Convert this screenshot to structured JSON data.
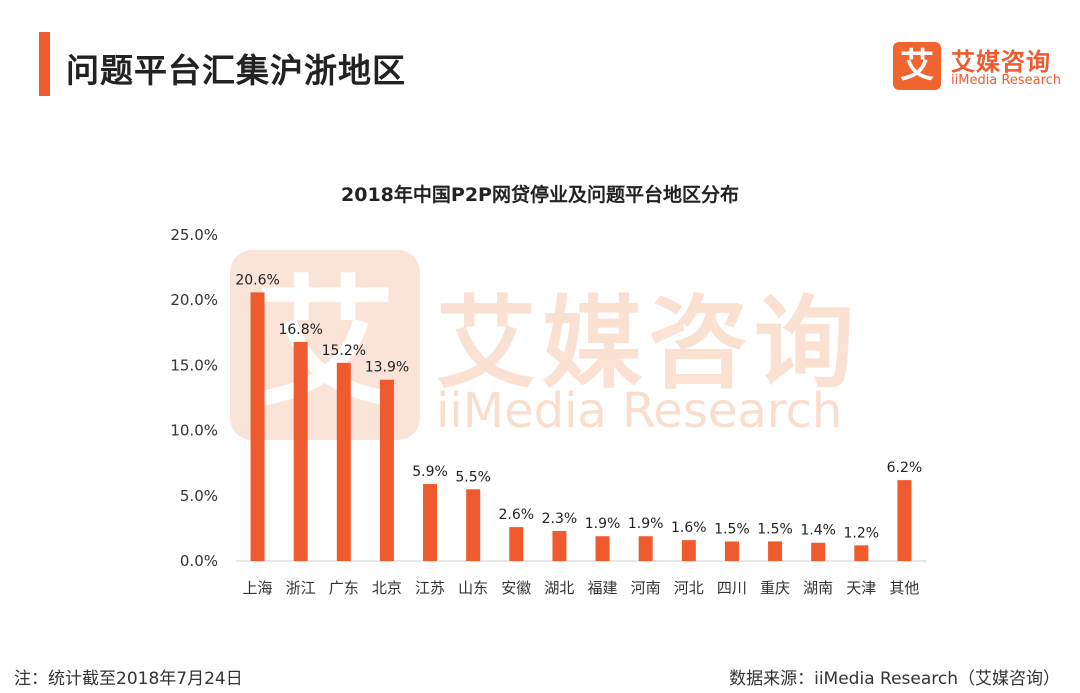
{
  "header": {
    "title": "问题平台汇集沪浙地区"
  },
  "logo": {
    "mark": "艾",
    "name_cn": "艾媒咨询",
    "name_en": "iiMedia Research"
  },
  "watermark": {
    "mark": "艾",
    "name_cn": "艾媒咨询",
    "name_en": "iiMedia Research"
  },
  "footer": {
    "note": "注：统计截至2018年7月24日",
    "source": "数据来源：iiMedia Research（艾媒咨询）"
  },
  "colors": {
    "bar": "#ef5a2e",
    "accent": "#ef5a2e",
    "axis": "#d0d0d0",
    "text": "#333333"
  },
  "chart_data": {
    "type": "bar",
    "title": "2018年中国P2P网贷停业及问题平台地区分布",
    "xlabel": "",
    "ylabel": "",
    "ylim": [
      0,
      25
    ],
    "yticks": [
      0,
      5,
      10,
      15,
      20,
      25
    ],
    "ytick_labels": [
      "0.0%",
      "5.0%",
      "10.0%",
      "15.0%",
      "20.0%",
      "25.0%"
    ],
    "grid": false,
    "categories": [
      "上海",
      "浙江",
      "广东",
      "北京",
      "江苏",
      "山东",
      "安徽",
      "湖北",
      "福建",
      "河南",
      "河北",
      "四川",
      "重庆",
      "湖南",
      "天津",
      "其他"
    ],
    "values": [
      20.6,
      16.8,
      15.2,
      13.9,
      5.9,
      5.5,
      2.6,
      2.3,
      1.9,
      1.9,
      1.6,
      1.5,
      1.5,
      1.4,
      1.2,
      6.2
    ],
    "value_labels": [
      "20.6%",
      "16.8%",
      "15.2%",
      "13.9%",
      "5.9%",
      "5.5%",
      "2.6%",
      "2.3%",
      "1.9%",
      "1.9%",
      "1.6%",
      "1.5%",
      "1.5%",
      "1.4%",
      "1.2%",
      "6.2%"
    ]
  }
}
